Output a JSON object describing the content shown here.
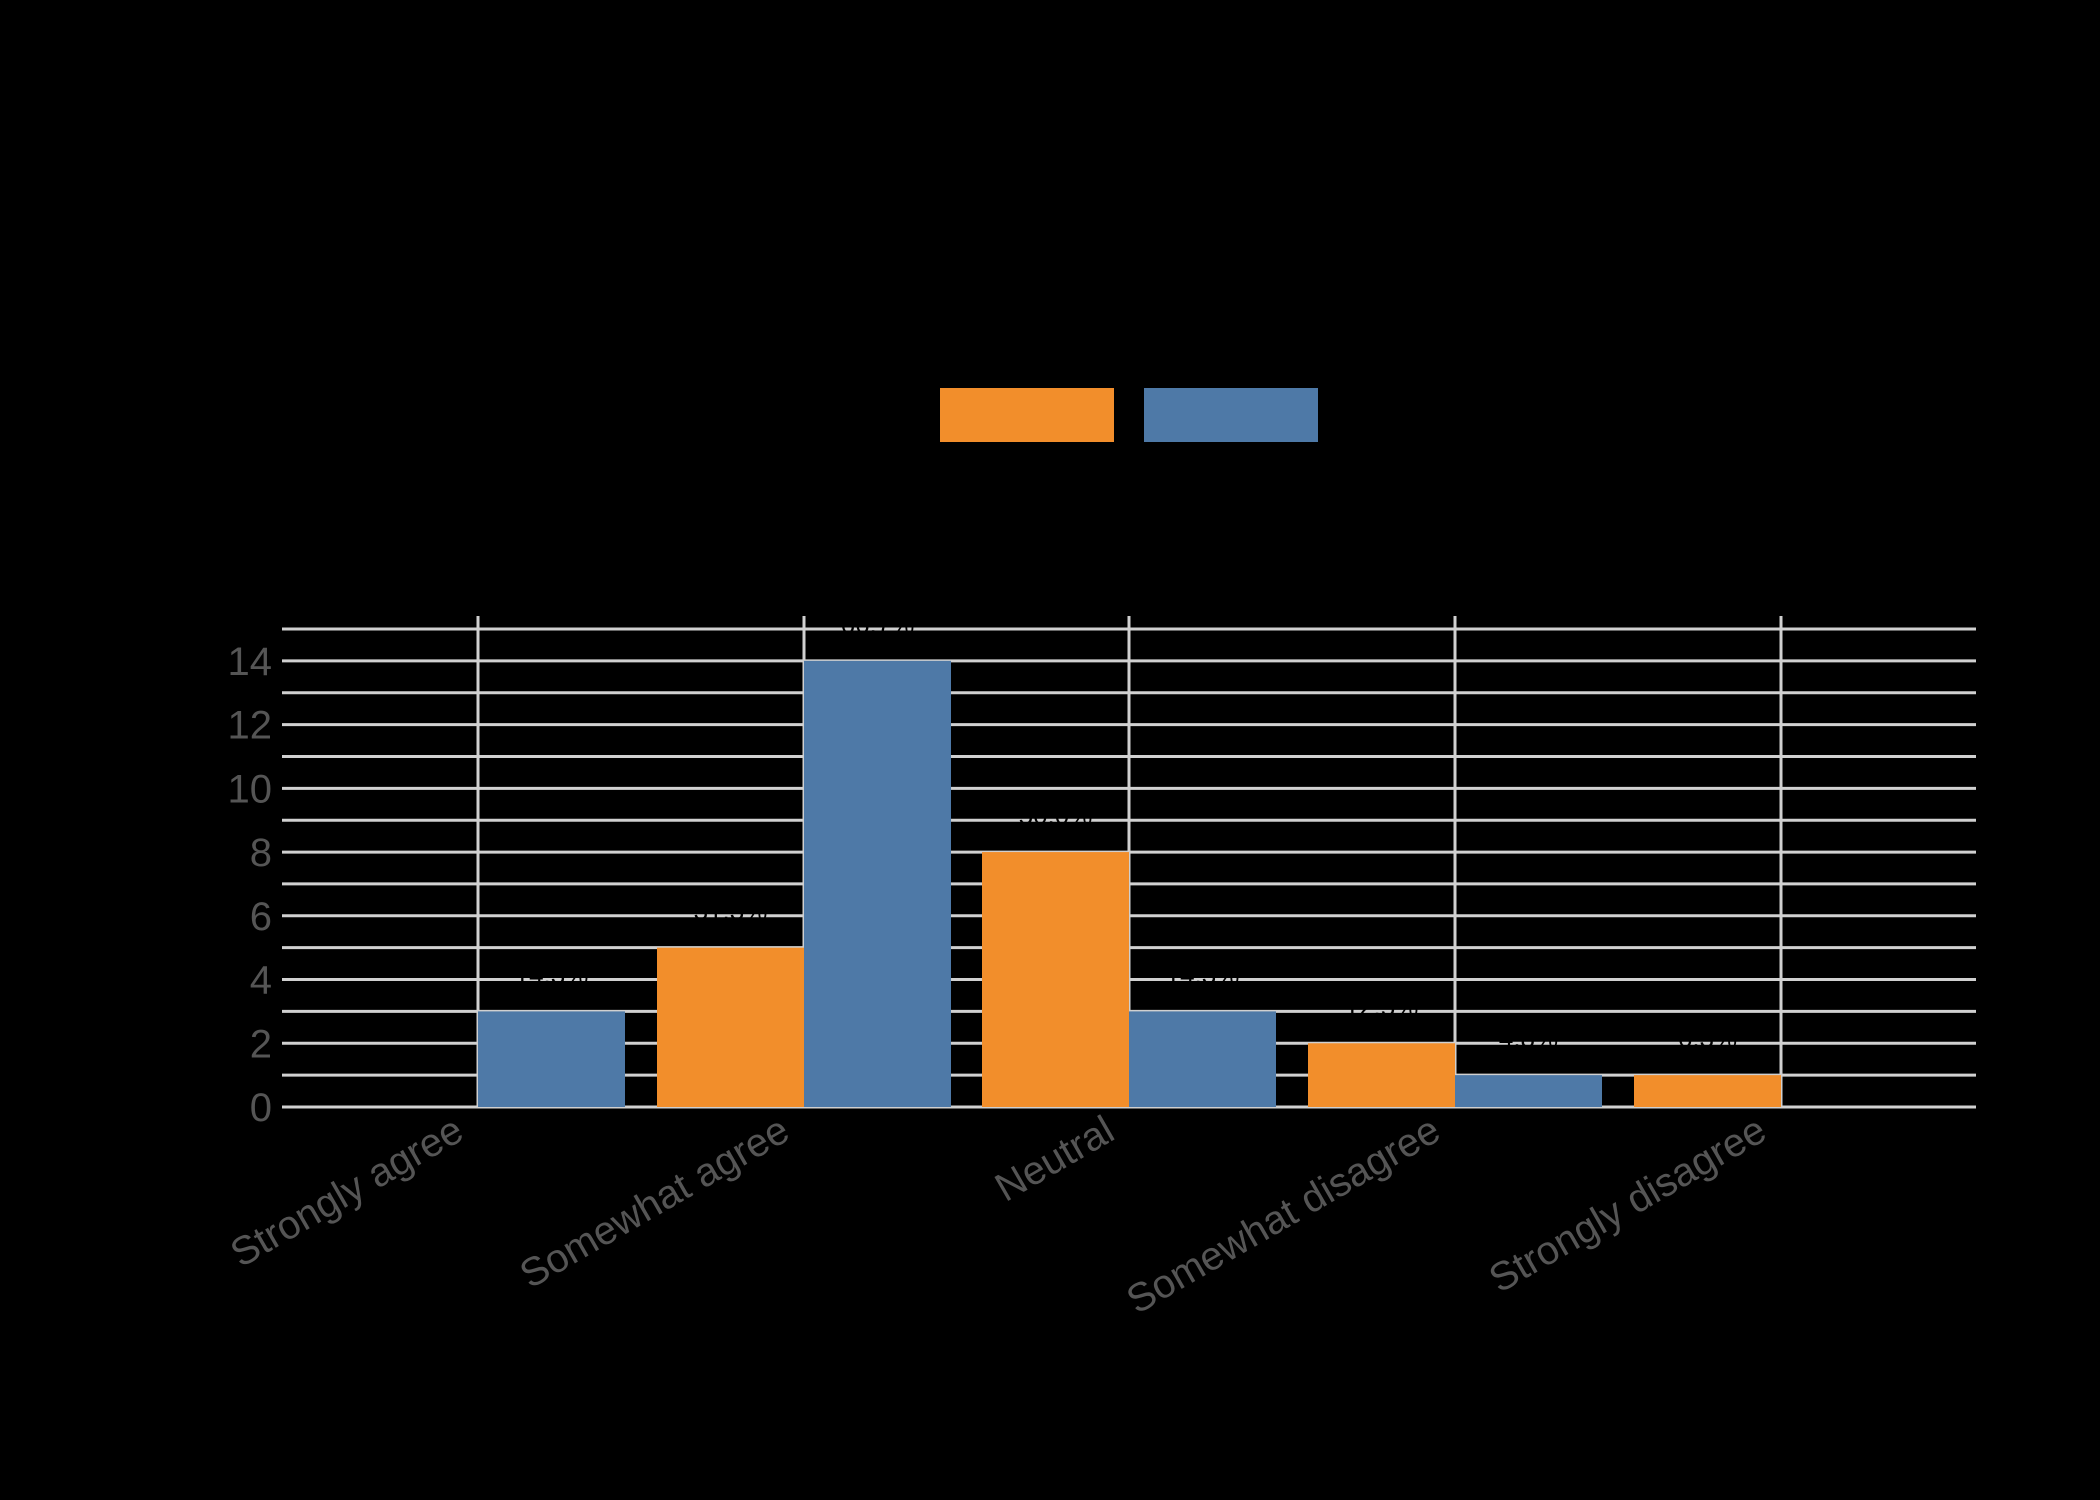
{
  "chart_data": {
    "type": "bar",
    "title": "",
    "xlabel": "",
    "ylabel": "",
    "categories": [
      "Strongly agree",
      "Somewhat agree",
      "Neutral",
      "Somewhat disagree",
      "Strongly disagree"
    ],
    "series": [
      {
        "name": "",
        "color": "#F28E2B",
        "values": [
          0,
          5,
          8,
          2,
          1
        ],
        "labels": [
          "",
          "31.3%",
          "50.0%",
          "12.5%",
          "6.3%"
        ]
      },
      {
        "name": "",
        "color": "#4E79A7",
        "values": [
          3,
          14,
          3,
          1,
          0
        ],
        "labels": [
          "14.3%",
          "66.7%",
          "14.3%",
          "4.8%",
          ""
        ]
      }
    ],
    "ylim": [
      0,
      15
    ],
    "yticks": [
      0,
      2,
      4,
      6,
      8,
      10,
      12,
      14
    ],
    "grid": true,
    "legend_position": "top",
    "background": "#000000",
    "gridline_color": "#D0D0D0",
    "axis_text_color": "#555555"
  },
  "legend": {
    "items": [
      {
        "name": "",
        "color": "#F28E2B"
      },
      {
        "name": "",
        "color": "#4E79A7"
      }
    ]
  }
}
